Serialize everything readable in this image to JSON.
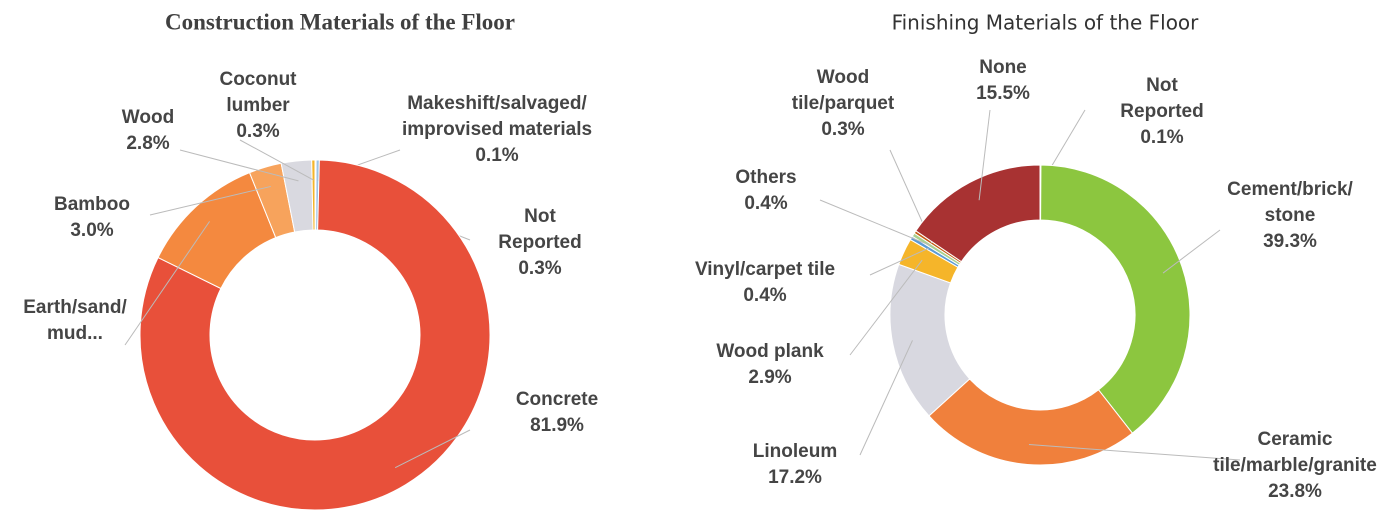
{
  "chart_data": [
    {
      "type": "donut",
      "title": "Construction Materials of the Floor",
      "categories": [
        [
          "Makeshift/salvaged/",
          "improvised materials"
        ],
        [
          "Not",
          "Reported"
        ],
        [
          "Concrete"
        ],
        [
          "Earth/sand/",
          "mud..."
        ],
        [
          "Bamboo"
        ],
        [
          "Wood"
        ],
        [
          "Coconut",
          "lumber"
        ]
      ],
      "values": [
        0.1,
        0.3,
        81.9,
        11.6,
        3.0,
        2.8,
        0.3
      ],
      "value_labels": [
        "0.1%",
        "0.3%",
        "81.9%",
        null,
        "3.0%",
        "2.8%",
        "0.3%"
      ],
      "colors": [
        "#4a7ebb",
        "#9dc3e6",
        "#e8503a",
        "#f4893f",
        "#f7a35c",
        "#d9d9e0",
        "#f5b52a"
      ]
    },
    {
      "type": "donut",
      "title": "Finishing Materials of the Floor",
      "categories": [
        [
          "Not",
          "Reported"
        ],
        [
          "Cement/brick/",
          "stone"
        ],
        [
          "Ceramic",
          "tile/marble/granite"
        ],
        [
          "Linoleum"
        ],
        [
          "Wood plank"
        ],
        [
          "Vinyl/carpet tile"
        ],
        [
          "Others"
        ],
        [
          "Wood",
          "tile/parquet"
        ],
        [
          "None"
        ]
      ],
      "values": [
        0.1,
        39.3,
        23.8,
        17.2,
        2.9,
        0.4,
        0.4,
        0.3,
        15.5
      ],
      "value_labels": [
        "0.1%",
        "39.3%",
        "23.8%",
        "17.2%",
        "2.9%",
        "0.4%",
        "0.4%",
        "0.3%",
        "15.5%"
      ],
      "colors": [
        "#9dc3e6",
        "#8cc63f",
        "#f0803c",
        "#d8d8e0",
        "#f5b52a",
        "#5b9bd5",
        "#a9d18e",
        "#c55a11",
        "#a83232"
      ]
    }
  ]
}
